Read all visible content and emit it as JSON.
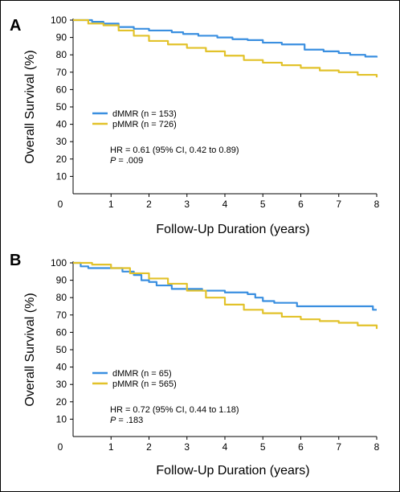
{
  "colors": {
    "dmmr": "#3a8fe0",
    "pmmr": "#e2c22a",
    "axis": "#000000"
  },
  "chart_data": [
    {
      "type": "line",
      "panel": "A",
      "xlabel": "Follow-Up Duration (years)",
      "ylabel": "Overall Survival (%)",
      "xlim": [
        0,
        8
      ],
      "ylim": [
        0,
        100
      ],
      "x_ticks": [
        1,
        2,
        3,
        4,
        5,
        6,
        7,
        8
      ],
      "y_ticks": [
        10,
        20,
        30,
        40,
        50,
        60,
        70,
        80,
        90,
        100
      ],
      "origin_label": "0",
      "grid": false,
      "legend_position": "middle-left",
      "series": [
        {
          "name": "dMMR (n = 153)",
          "color_key": "dmmr",
          "points": [
            [
              0,
              100
            ],
            [
              0.3,
              100
            ],
            [
              0.5,
              99
            ],
            [
              0.8,
              98
            ],
            [
              1.2,
              96
            ],
            [
              1.6,
              95
            ],
            [
              2,
              94
            ],
            [
              2.6,
              93
            ],
            [
              2.9,
              92
            ],
            [
              3.3,
              91
            ],
            [
              3.8,
              90
            ],
            [
              4.2,
              89
            ],
            [
              4.6,
              88.5
            ],
            [
              5.0,
              87
            ],
            [
              5.5,
              86
            ],
            [
              6.1,
              83
            ],
            [
              6.6,
              82
            ],
            [
              7.0,
              81
            ],
            [
              7.3,
              80
            ],
            [
              7.7,
              79
            ],
            [
              8,
              78.5
            ]
          ]
        },
        {
          "name": "pMMR (n = 726)",
          "color_key": "pmmr",
          "points": [
            [
              0,
              100
            ],
            [
              0.4,
              98
            ],
            [
              0.8,
              97
            ],
            [
              1.2,
              94
            ],
            [
              1.6,
              91
            ],
            [
              2,
              88
            ],
            [
              2.5,
              86
            ],
            [
              3,
              84
            ],
            [
              3.5,
              82
            ],
            [
              4,
              79.5
            ],
            [
              4.5,
              77
            ],
            [
              5,
              75.5
            ],
            [
              5.5,
              74
            ],
            [
              6,
              72.5
            ],
            [
              6.5,
              71
            ],
            [
              7,
              70
            ],
            [
              7.5,
              68.5
            ],
            [
              8,
              67
            ]
          ]
        }
      ],
      "annotation": {
        "hr": "HR = 0.61 (95% CI, 0.42 to 0.89)",
        "p_label": "P",
        "p_value": " = .009"
      }
    },
    {
      "type": "line",
      "panel": "B",
      "xlabel": "Follow-Up Duration (years)",
      "ylabel": "Overall Survival (%)",
      "xlim": [
        0,
        8
      ],
      "ylim": [
        0,
        100
      ],
      "x_ticks": [
        1,
        2,
        3,
        4,
        5,
        6,
        7,
        8
      ],
      "y_ticks": [
        10,
        20,
        30,
        40,
        50,
        60,
        70,
        80,
        90,
        100
      ],
      "origin_label": "0",
      "grid": false,
      "legend_position": "middle-left",
      "series": [
        {
          "name": "dMMR (n = 65)",
          "color_key": "dmmr",
          "points": [
            [
              0,
              100
            ],
            [
              0.2,
              98
            ],
            [
              0.4,
              97
            ],
            [
              1.1,
              97
            ],
            [
              1.3,
              95
            ],
            [
              1.6,
              93
            ],
            [
              1.8,
              90
            ],
            [
              2.0,
              89
            ],
            [
              2.2,
              87
            ],
            [
              2.6,
              85
            ],
            [
              3.4,
              84
            ],
            [
              4.0,
              83
            ],
            [
              4.6,
              82
            ],
            [
              4.8,
              80
            ],
            [
              5.0,
              78
            ],
            [
              5.3,
              77
            ],
            [
              5.9,
              75
            ],
            [
              6.5,
              75
            ],
            [
              7.8,
              75
            ],
            [
              7.9,
              73
            ],
            [
              8,
              73
            ]
          ]
        },
        {
          "name": "pMMR (n = 565)",
          "color_key": "pmmr",
          "points": [
            [
              0,
              100
            ],
            [
              0.5,
              99
            ],
            [
              1,
              97
            ],
            [
              1.5,
              94
            ],
            [
              2,
              91
            ],
            [
              2.5,
              88
            ],
            [
              3,
              84
            ],
            [
              3.5,
              80
            ],
            [
              4,
              76
            ],
            [
              4.5,
              73
            ],
            [
              5,
              71
            ],
            [
              5.5,
              69
            ],
            [
              6,
              67.5
            ],
            [
              6.5,
              66.5
            ],
            [
              7,
              65.5
            ],
            [
              7.5,
              64
            ],
            [
              8,
              62
            ]
          ]
        }
      ],
      "annotation": {
        "hr": "HR = 0.72 (95% CI, 0.44 to 1.18)",
        "p_label": "P",
        "p_value": " = .183"
      }
    }
  ]
}
